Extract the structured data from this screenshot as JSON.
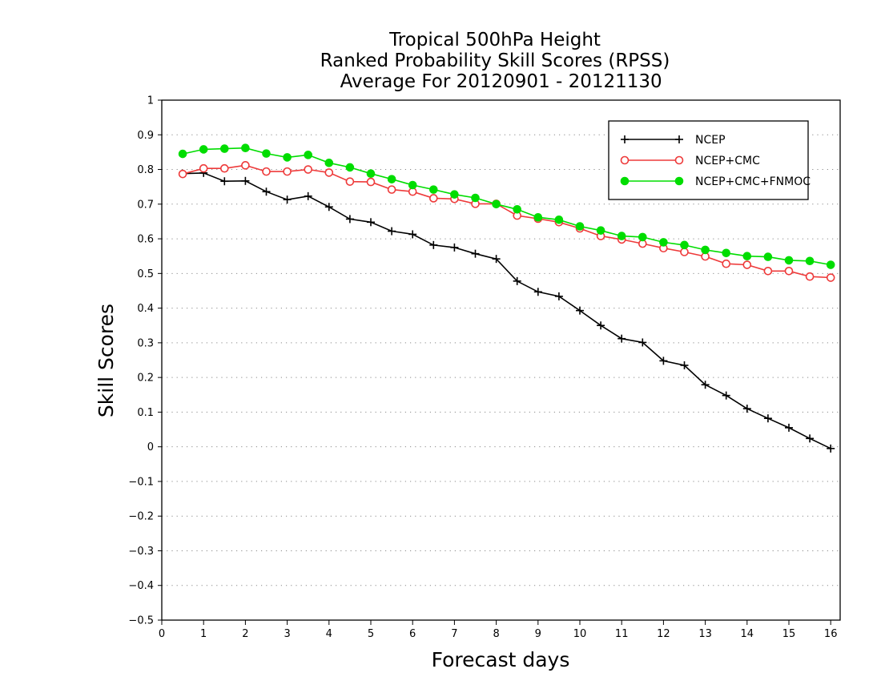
{
  "chart_data": {
    "type": "line",
    "title_lines": [
      "Tropical 500hPa Height",
      "Ranked Probability Skill Scores (RPSS)",
      " Average For 20120901 - 20121130"
    ],
    "xlabel": "Forecast days",
    "ylabel": "Skill Scores",
    "xlim": [
      0,
      16.3
    ],
    "ylim": [
      -0.5,
      1
    ],
    "x_ticks": [
      "0",
      "1",
      "2",
      "3",
      "4",
      "5",
      "6",
      "7",
      "8",
      "9",
      "10",
      "11",
      "12",
      "13",
      "14",
      "15",
      "16"
    ],
    "y_ticks": [
      "1",
      "0.9",
      "0.8",
      "0.7",
      "0.6",
      "0.5",
      "0.4",
      "0.3",
      "0.2",
      "0.1",
      "0",
      "−0.1",
      "−0.2",
      "−0.3",
      "−0.4",
      "−0.5"
    ],
    "grid": "horizontal dotted",
    "legend_position": "top-right",
    "x": [
      0.5,
      1,
      1.5,
      2,
      2.5,
      3,
      3.5,
      4,
      4.5,
      5,
      5.5,
      6,
      6.5,
      7,
      7.5,
      8,
      8.5,
      9,
      9.5,
      10,
      10.5,
      11,
      11.5,
      12,
      12.5,
      13,
      13.5,
      14,
      14.5,
      15,
      15.5,
      16
    ],
    "series": [
      {
        "name": "NCEP",
        "color": "#000000",
        "marker": "plus",
        "values": [
          0.788,
          0.79,
          0.766,
          0.767,
          0.736,
          0.713,
          0.723,
          0.692,
          0.657,
          0.648,
          0.622,
          0.613,
          0.582,
          0.575,
          0.557,
          0.542,
          0.478,
          0.447,
          0.434,
          0.393,
          0.35,
          0.312,
          0.301,
          0.248,
          0.235,
          0.179,
          0.148,
          0.11,
          0.082,
          0.055,
          0.024,
          -0.005
        ]
      },
      {
        "name": "NCEP+CMC",
        "color": "#ee3a3a",
        "marker": "open-circle",
        "values": [
          0.787,
          0.803,
          0.803,
          0.812,
          0.794,
          0.794,
          0.8,
          0.791,
          0.765,
          0.764,
          0.742,
          0.736,
          0.717,
          0.715,
          0.701,
          0.701,
          0.667,
          0.658,
          0.648,
          0.63,
          0.608,
          0.598,
          0.586,
          0.573,
          0.562,
          0.549,
          0.528,
          0.525,
          0.507,
          0.507,
          0.491,
          0.488
        ]
      },
      {
        "name": "NCEP+CMC+FNMOC",
        "color": "#00dd00",
        "marker": "filled-circle",
        "values": [
          0.845,
          0.858,
          0.86,
          0.862,
          0.846,
          0.835,
          0.842,
          0.819,
          0.806,
          0.788,
          0.772,
          0.755,
          0.742,
          0.728,
          0.718,
          0.7,
          0.685,
          0.662,
          0.655,
          0.636,
          0.624,
          0.608,
          0.605,
          0.59,
          0.582,
          0.568,
          0.559,
          0.55,
          0.548,
          0.538,
          0.536,
          0.525
        ]
      }
    ]
  }
}
